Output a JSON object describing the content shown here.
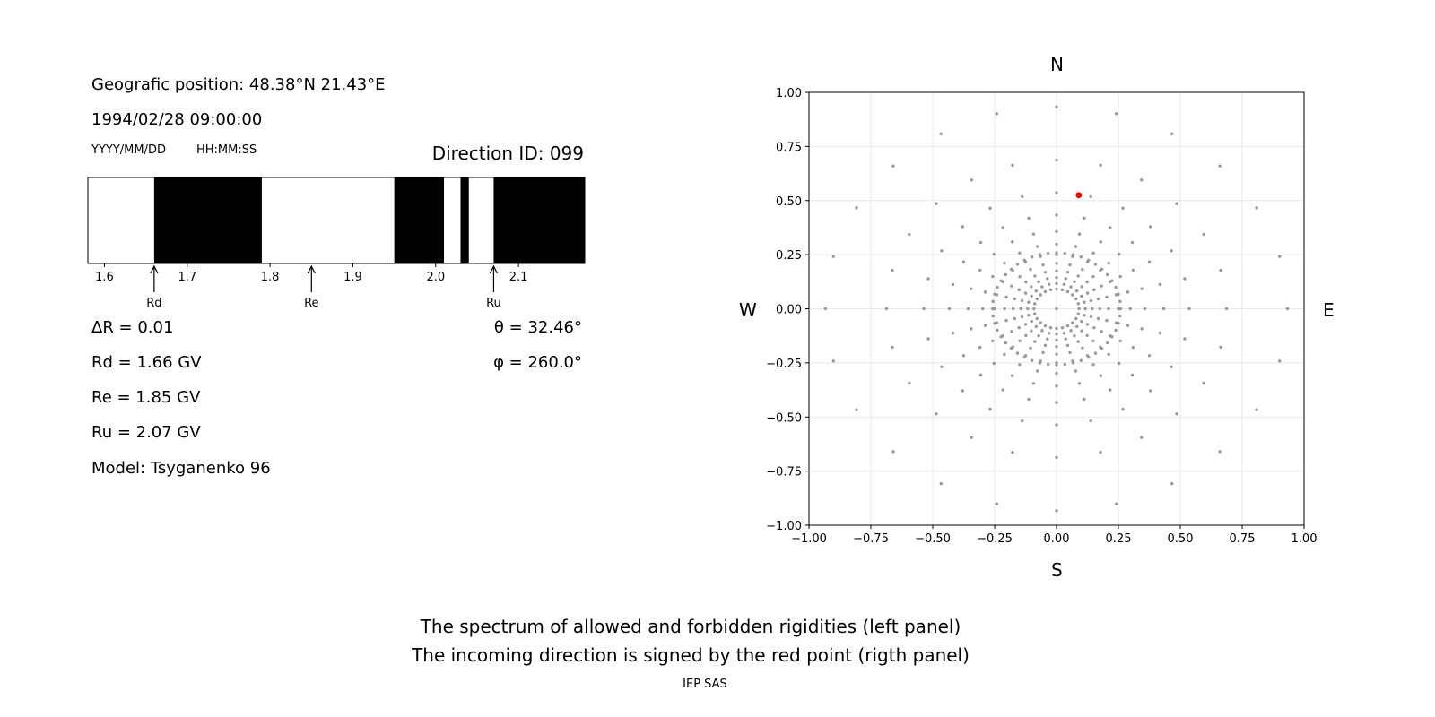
{
  "left_panel": {
    "position": "Geografic position: 48.38°N 21.43°E",
    "datetime": "1994/02/28 09:00:00",
    "date_format": "YYYY/MM/DD",
    "time_format": "HH:MM:SS",
    "direction_id": "Direction ID: 099",
    "delta_r": "ΔR = 0.01",
    "rd": "Rd = 1.66 GV",
    "re": "Re = 1.85 GV",
    "ru": "Ru = 2.07 GV",
    "model": "Model: Tsyganenko 96",
    "theta": "θ = 32.46°",
    "phi": "φ = 260.0°"
  },
  "right_panel": {
    "north": "N",
    "south": "S",
    "east": "E",
    "west": "W"
  },
  "footer": {
    "line1": "The spectrum of allowed and forbidden rigidities (left panel)",
    "line2": "The incoming direction is signed by the red point (rigth panel)",
    "credit": "IEP SAS"
  },
  "colors": {
    "forbidden": "#000000",
    "allowed": "#ffffff",
    "grid_points": "#999999",
    "marker": "#ff0000"
  },
  "chart_data": [
    {
      "type": "bar",
      "xlim": [
        1.58,
        2.18
      ],
      "xticks": [
        "1.6",
        "1.7",
        "1.8",
        "1.9",
        "2.0",
        "2.1"
      ],
      "forbidden_intervals": [
        [
          1.66,
          1.79
        ],
        [
          1.95,
          2.01
        ],
        [
          2.03,
          2.04
        ],
        [
          2.07,
          2.18
        ]
      ],
      "markers": [
        {
          "label": "Rd",
          "value": 1.66
        },
        {
          "label": "Re",
          "value": 1.85
        },
        {
          "label": "Ru",
          "value": 2.07
        }
      ]
    },
    {
      "type": "scatter",
      "xlim": [
        -1.0,
        1.0
      ],
      "ylim": [
        -1.0,
        1.0
      ],
      "grid": true,
      "xticks": [
        "−1.00",
        "−0.75",
        "−0.50",
        "−0.25",
        "0.00",
        "0.25",
        "0.50",
        "0.75",
        "1.00"
      ],
      "yticks": [
        "1.00",
        "0.75",
        "0.50",
        "0.25",
        "0.00",
        "−0.25",
        "−0.50",
        "−0.75",
        "−1.00"
      ],
      "direction_grid": {
        "azimuth_step_deg": 15,
        "zenith_step_deg": 5,
        "zenith_max_deg": 90,
        "central_ring_deg": 15
      },
      "highlight": {
        "theta_deg": 32.46,
        "phi_deg": 260.0
      }
    }
  ]
}
